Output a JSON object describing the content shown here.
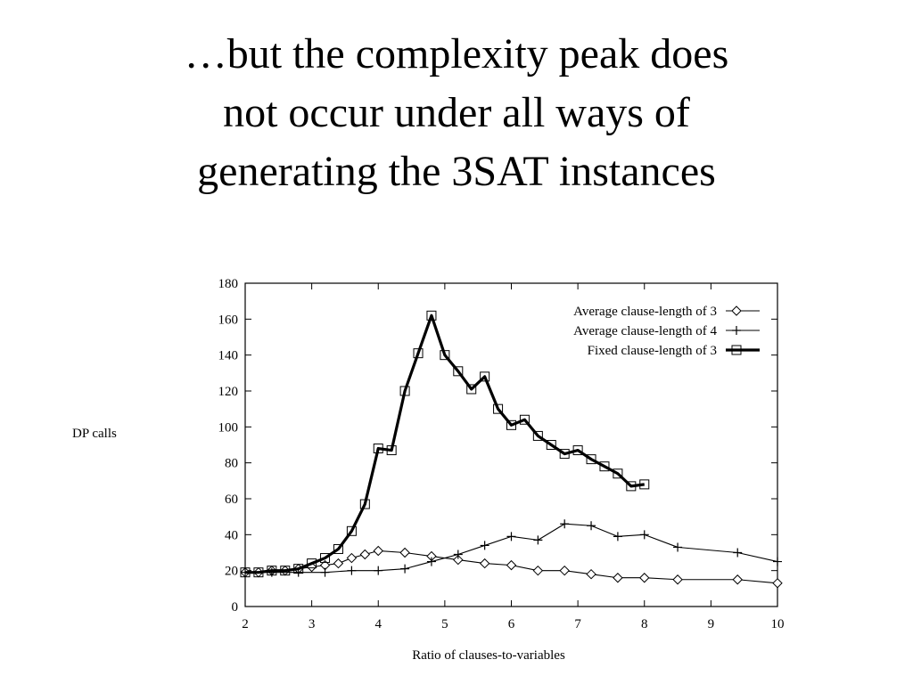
{
  "slide": {
    "title_lines": [
      "…but the complexity peak does",
      "not occur under all ways of",
      "generating the 3SAT instances"
    ]
  },
  "chart_data": {
    "type": "line",
    "title": "",
    "xlabel": "Ratio of clauses-to-variables",
    "ylabel": "DP calls",
    "xlim": [
      2,
      10
    ],
    "ylim": [
      0,
      180
    ],
    "xticks": [
      2,
      3,
      4,
      5,
      6,
      7,
      8,
      9,
      10
    ],
    "yticks": [
      0,
      20,
      40,
      60,
      80,
      100,
      120,
      140,
      160,
      180
    ],
    "grid": false,
    "legend_position": "top-right",
    "series": [
      {
        "name": "Average clause-length of 3",
        "marker": "diamond",
        "line_weight": "thin",
        "points": [
          [
            2,
            19
          ],
          [
            2.2,
            19
          ],
          [
            2.4,
            20
          ],
          [
            2.6,
            20
          ],
          [
            2.8,
            21
          ],
          [
            3,
            22
          ],
          [
            3.2,
            23
          ],
          [
            3.4,
            24
          ],
          [
            3.6,
            27
          ],
          [
            3.8,
            29
          ],
          [
            4,
            31
          ],
          [
            4.4,
            30
          ],
          [
            4.8,
            28
          ],
          [
            5.2,
            26
          ],
          [
            5.6,
            24
          ],
          [
            6,
            23
          ],
          [
            6.4,
            20
          ],
          [
            6.8,
            20
          ],
          [
            7.2,
            18
          ],
          [
            7.6,
            16
          ],
          [
            8,
            16
          ],
          [
            8.5,
            15
          ],
          [
            9.4,
            15
          ],
          [
            10,
            13
          ]
        ]
      },
      {
        "name": "Average clause-length of 4",
        "marker": "plus",
        "line_weight": "thin",
        "points": [
          [
            2,
            19
          ],
          [
            2.4,
            19
          ],
          [
            2.8,
            19
          ],
          [
            3.2,
            19
          ],
          [
            3.6,
            20
          ],
          [
            4,
            20
          ],
          [
            4.4,
            21
          ],
          [
            4.8,
            25
          ],
          [
            5.2,
            29
          ],
          [
            5.6,
            34
          ],
          [
            6,
            39
          ],
          [
            6.4,
            37
          ],
          [
            6.8,
            46
          ],
          [
            7.2,
            45
          ],
          [
            7.6,
            39
          ],
          [
            8,
            40
          ],
          [
            8.5,
            33
          ],
          [
            9.4,
            30
          ],
          [
            10,
            25
          ]
        ]
      },
      {
        "name": "Fixed clause-length of 3",
        "marker": "square",
        "line_weight": "bold",
        "points": [
          [
            2,
            19
          ],
          [
            2.2,
            19
          ],
          [
            2.4,
            20
          ],
          [
            2.6,
            20
          ],
          [
            2.8,
            21
          ],
          [
            3,
            24
          ],
          [
            3.2,
            27
          ],
          [
            3.4,
            32
          ],
          [
            3.6,
            42
          ],
          [
            3.8,
            57
          ],
          [
            4,
            88
          ],
          [
            4.2,
            87
          ],
          [
            4.4,
            120
          ],
          [
            4.6,
            141
          ],
          [
            4.8,
            162
          ],
          [
            5,
            140
          ],
          [
            5.2,
            131
          ],
          [
            5.4,
            121
          ],
          [
            5.6,
            128
          ],
          [
            5.8,
            110
          ],
          [
            6,
            101
          ],
          [
            6.2,
            104
          ],
          [
            6.4,
            95
          ],
          [
            6.6,
            90
          ],
          [
            6.8,
            85
          ],
          [
            7,
            87
          ],
          [
            7.2,
            82
          ],
          [
            7.4,
            78
          ],
          [
            7.6,
            74
          ],
          [
            7.8,
            67
          ],
          [
            8,
            68
          ]
        ]
      }
    ]
  }
}
